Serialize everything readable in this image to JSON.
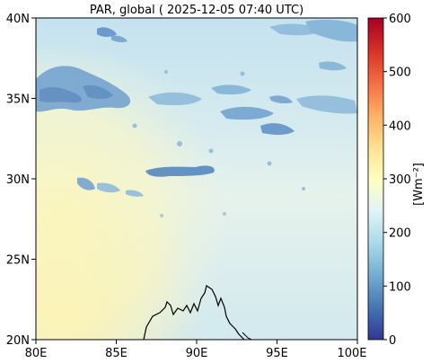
{
  "title": "PAR, global ( 2025-12-05 07:40 UTC)",
  "lat_labels": [
    "40N",
    "35N",
    "30N",
    "25N",
    "20N"
  ],
  "lon_labels": [
    "80E",
    "85E",
    "90E",
    "95E",
    "100E"
  ],
  "colorbar": {
    "label": "[Wm⁻²]",
    "ticks": [
      "600",
      "500",
      "400",
      "300",
      "200",
      "100",
      "0"
    ],
    "range": [
      0,
      600
    ],
    "colormap": "RdYlBu_r",
    "stops": [
      "#313695",
      "#4575b4",
      "#74add1",
      "#abd9e9",
      "#e0f3f8",
      "#ffffbf",
      "#fee090",
      "#fdae61",
      "#f46d43",
      "#d73027",
      "#a50026"
    ]
  },
  "map_extent": {
    "lon": [
      80,
      100
    ],
    "lat": [
      20,
      40
    ]
  },
  "field_colors": {
    "north": "#c7e3ef",
    "mid_west": "#f3f6cf",
    "south_west": "#fbf5c0",
    "south_east": "#cfe8f0",
    "cloud": "#8db8d8",
    "cloud_dark": "#5a8ec3"
  }
}
